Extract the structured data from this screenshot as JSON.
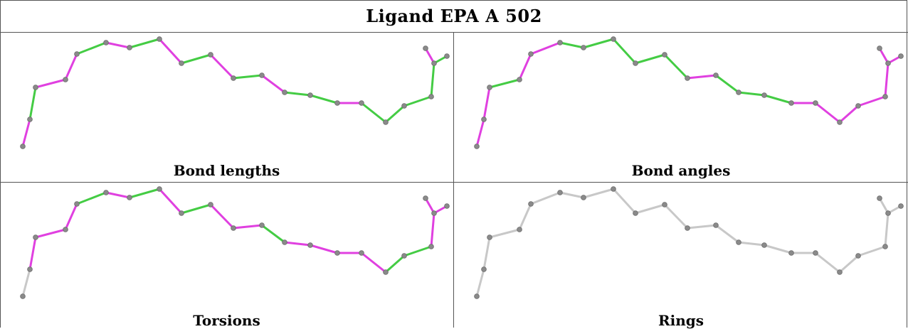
{
  "title": "Ligand EPA A 502",
  "panels": [
    {
      "label": "Bond lengths",
      "bond_colors": [
        "magenta",
        "green",
        "magenta",
        "magenta",
        "green",
        "magenta",
        "green",
        "magenta",
        "green",
        "magenta",
        "green",
        "magenta",
        "green",
        "green",
        "magenta",
        "green",
        "green",
        "green",
        "green",
        "magenta",
        "green",
        "green",
        "green"
      ]
    },
    {
      "label": "Bond angles",
      "bond_colors": [
        "magenta",
        "magenta",
        "green",
        "magenta",
        "magenta",
        "green",
        "green",
        "green",
        "green",
        "green",
        "magenta",
        "green",
        "green",
        "green",
        "magenta",
        "magenta",
        "magenta",
        "magenta",
        "magenta",
        "magenta",
        "magenta",
        "magenta",
        "magenta"
      ]
    },
    {
      "label": "Torsions",
      "bond_colors": [
        "gray",
        "magenta",
        "magenta",
        "magenta",
        "green",
        "magenta",
        "green",
        "magenta",
        "green",
        "magenta",
        "magenta",
        "green",
        "magenta",
        "magenta",
        "magenta",
        "magenta",
        "green",
        "green",
        "magenta",
        "magenta",
        "magenta",
        "gray",
        "gray"
      ]
    },
    {
      "label": "Rings",
      "bond_colors": [
        "gray",
        "gray",
        "gray",
        "gray",
        "gray",
        "gray",
        "gray",
        "gray",
        "gray",
        "gray",
        "gray",
        "gray",
        "gray",
        "gray",
        "gray",
        "gray",
        "gray",
        "gray",
        "gray",
        "gray",
        "gray",
        "gray",
        "gray"
      ]
    }
  ],
  "colors": {
    "magenta": "#e040e0",
    "green": "#44cc44",
    "gray": "#c8c8c8",
    "atom": "#8a8a8a",
    "border": "#555555"
  }
}
